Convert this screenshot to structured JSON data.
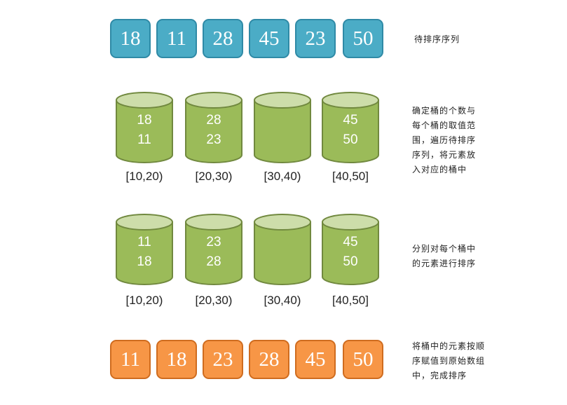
{
  "row1": {
    "values": [
      "18",
      "11",
      "28",
      "45",
      "23",
      "50"
    ],
    "note": "待排序序列"
  },
  "row2": {
    "buckets": [
      {
        "values": [
          "18",
          "11"
        ],
        "range": "[10,20)"
      },
      {
        "values": [
          "28",
          "23"
        ],
        "range": "[20,30)"
      },
      {
        "values": [],
        "range": "[30,40)"
      },
      {
        "values": [
          "45",
          "50"
        ],
        "range": "[40,50]"
      }
    ],
    "note": "确定桶的个数与\n每个桶的取值范\n围，遍历待排序\n序列，将元素放\n入对应的桶中"
  },
  "row3": {
    "buckets": [
      {
        "values": [
          "11",
          "18"
        ],
        "range": "[10,20)"
      },
      {
        "values": [
          "23",
          "28"
        ],
        "range": "[20,30)"
      },
      {
        "values": [],
        "range": "[30,40)"
      },
      {
        "values": [
          "45",
          "50"
        ],
        "range": "[40,50]"
      }
    ],
    "note": "分别对每个桶中\n的元素进行排序"
  },
  "row4": {
    "values": [
      "11",
      "18",
      "23",
      "28",
      "45",
      "50"
    ],
    "note": "将桶中的元素按顺\n序赋值到原始数组\n中，完成排序"
  },
  "colors": {
    "box_blue": "#4bacc6",
    "box_orange": "#f79646",
    "bucket_body": "#9bbb59",
    "bucket_top": "#cdddaa",
    "bucket_border": "#71893f"
  }
}
